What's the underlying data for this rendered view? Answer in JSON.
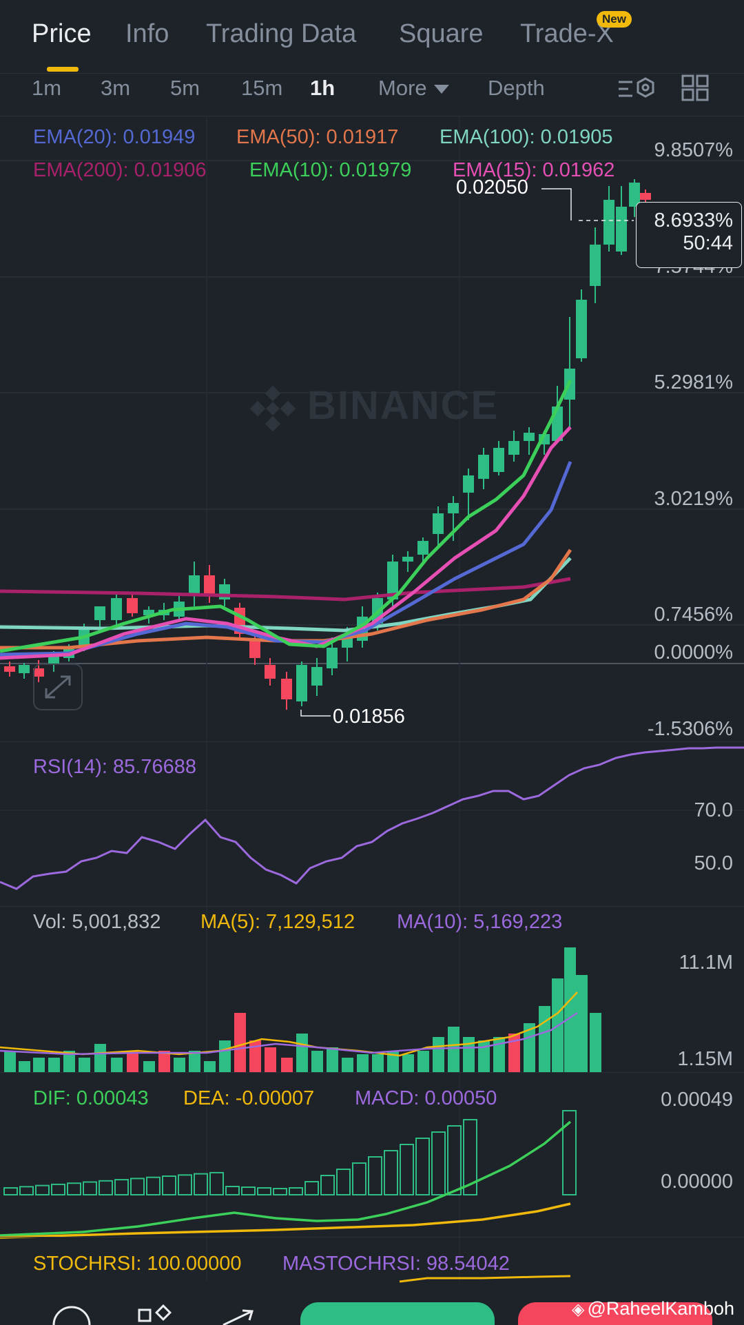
{
  "tabs": [
    {
      "label": "Price",
      "active": true
    },
    {
      "label": "Info"
    },
    {
      "label": "Trading Data"
    },
    {
      "label": "Square"
    },
    {
      "label": "Trade-X"
    }
  ],
  "new_badge": "New",
  "timeframes": [
    {
      "label": "1m"
    },
    {
      "label": "3m"
    },
    {
      "label": "5m"
    },
    {
      "label": "15m"
    },
    {
      "label": "1h",
      "active": true
    },
    {
      "label": "More"
    },
    {
      "label": "Depth"
    }
  ],
  "ema_legend": [
    {
      "text": "EMA(20): 0.01949",
      "color": "#5469d4"
    },
    {
      "text": "EMA(50): 0.01917",
      "color": "#e3764a"
    },
    {
      "text": "EMA(100): 0.01905",
      "color": "#7fd6c2"
    },
    {
      "text": "EMA(200): 0.01906",
      "color": "#a8216a"
    },
    {
      "text": "EMA(10): 0.01979",
      "color": "#3ccf5a"
    },
    {
      "text": "EMA(15): 0.01962",
      "color": "#e64fb4"
    }
  ],
  "price_axis": [
    "9.8507%",
    "7.5744%",
    "5.2981%",
    "3.0219%",
    "0.7456%",
    "0.0000%",
    "-1.5306%"
  ],
  "high_label": "0.02050",
  "low_label": "0.01856",
  "current": {
    "percent": "8.6933%",
    "countdown": "50:44"
  },
  "watermark": "BINANCE",
  "rsi": {
    "label": "RSI(14): 85.76688",
    "levels": [
      "70.0",
      "50.0"
    ],
    "color": "#9c6ade"
  },
  "volume": {
    "vol_label": "Vol: 5,001,832",
    "ma5_label": "MA(5): 7,129,512",
    "ma10_label": "MA(10): 5,169,223",
    "axis": [
      "11.1M",
      "1.15M"
    ]
  },
  "macd": {
    "dif_label": "DIF: 0.00043",
    "dea_label": "DEA: -0.00007",
    "macd_label": "MACD: 0.00050",
    "axis": [
      "0.00049",
      "0.00000"
    ]
  },
  "stochrsi": {
    "stoch_label": "STOCHRSI: 100.00000",
    "ma_label": "MASTOCHRSI: 98.54042"
  },
  "colors": {
    "up": "#2ebd85",
    "down": "#f6465d",
    "accent": "#f0b90b",
    "background": "#1e2329"
  },
  "credit": "@RaheelKamboh",
  "icons": [
    "chart-settings-icon",
    "grid-layout-icon",
    "expand-icon",
    "binance-logo-icon",
    "more-icon",
    "markets-icon",
    "trade-icon"
  ]
}
